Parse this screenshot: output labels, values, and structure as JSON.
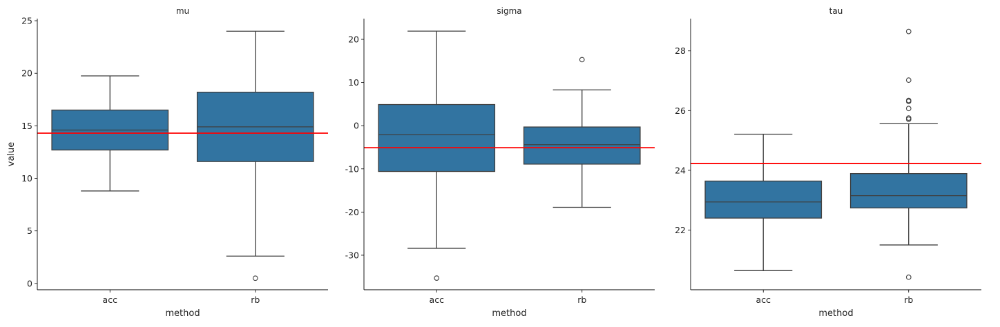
{
  "chart_data": [
    {
      "type": "box",
      "title": "mu",
      "xlabel": "method",
      "ylabel": "value",
      "categories": [
        "acc",
        "rb"
      ],
      "ylim": [
        -0.6,
        25.2
      ],
      "yticks": [
        0,
        5,
        10,
        15,
        20,
        25
      ],
      "reference_line": 14.3,
      "reference_color": "#ff0000",
      "box_color": "#3274a1",
      "boxes": [
        {
          "category": "acc",
          "whisker_low": 8.8,
          "q1": 12.7,
          "median": 14.6,
          "q3": 16.5,
          "whisker_high": 19.75,
          "outliers": []
        },
        {
          "category": "rb",
          "whisker_low": 2.6,
          "q1": 11.6,
          "median": 14.9,
          "q3": 18.2,
          "whisker_high": 24.0,
          "outliers": [
            0.5
          ]
        }
      ]
    },
    {
      "type": "box",
      "title": "sigma",
      "xlabel": "method",
      "ylabel": "",
      "categories": [
        "acc",
        "rb"
      ],
      "ylim": [
        -38,
        24.8
      ],
      "yticks": [
        -30,
        -20,
        -10,
        0,
        10,
        20
      ],
      "reference_line": -5.1,
      "reference_color": "#ff0000",
      "box_color": "#3274a1",
      "boxes": [
        {
          "category": "acc",
          "whisker_low": -28.4,
          "q1": -10.6,
          "median": -2.1,
          "q3": 4.9,
          "whisker_high": 21.9,
          "outliers": [
            -35.3
          ]
        },
        {
          "category": "rb",
          "whisker_low": -18.9,
          "q1": -8.9,
          "median": -4.4,
          "q3": -0.3,
          "whisker_high": 8.3,
          "outliers": [
            15.3
          ]
        }
      ]
    },
    {
      "type": "box",
      "title": "tau",
      "xlabel": "method",
      "ylabel": "",
      "categories": [
        "acc",
        "rb"
      ],
      "ylim": [
        20.0,
        29.08
      ],
      "yticks": [
        22,
        24,
        26,
        28
      ],
      "reference_line": 24.23,
      "reference_color": "#ff0000",
      "box_color": "#3274a1",
      "boxes": [
        {
          "category": "acc",
          "whisker_low": 20.64,
          "q1": 22.4,
          "median": 22.94,
          "q3": 23.64,
          "whisker_high": 25.21,
          "outliers": []
        },
        {
          "category": "rb",
          "whisker_low": 21.5,
          "q1": 22.74,
          "median": 23.15,
          "q3": 23.89,
          "whisker_high": 25.56,
          "outliers": [
            28.65,
            27.02,
            26.34,
            26.31,
            26.07,
            25.75,
            25.71,
            20.42
          ]
        }
      ]
    }
  ]
}
